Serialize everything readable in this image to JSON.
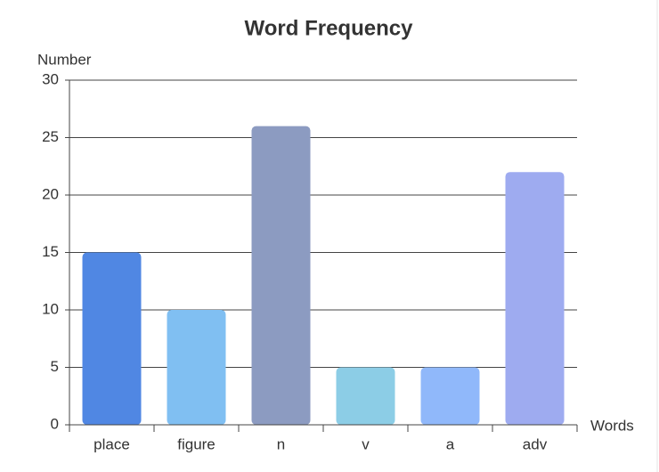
{
  "chart_data": {
    "type": "bar",
    "title": "Word Frequency",
    "y_label": "Number",
    "x_label": "Words",
    "categories": [
      "place",
      "figure",
      "n",
      "v",
      "a",
      "adv"
    ],
    "values": [
      15,
      10,
      26,
      5,
      5,
      22
    ],
    "colors": [
      "#5087e3",
      "#80bff2",
      "#8c9bc1",
      "#8ccde6",
      "#90b8fa",
      "#9eabf0"
    ],
    "ylim": [
      0,
      30
    ],
    "yticks": [
      0,
      5,
      10,
      15,
      20,
      25,
      30
    ],
    "grid": true
  }
}
